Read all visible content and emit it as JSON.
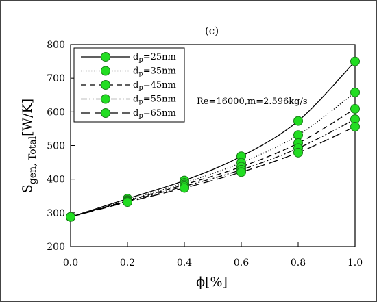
{
  "chart_data": {
    "type": "line",
    "panel_label": "(c)",
    "xlabel": "ϕ[%]",
    "ylabel_main": "S",
    "ylabel_sub": "gen, Total",
    "ylabel_unit": "[W/K]",
    "xlim": [
      0,
      1
    ],
    "ylim": [
      200,
      800
    ],
    "xticks": [
      0.0,
      0.2,
      0.4,
      0.6,
      0.8,
      1.0
    ],
    "xtick_labels": [
      "0.0",
      "0.2",
      "0.4",
      "0.6",
      "0.8",
      "1.0"
    ],
    "yticks": [
      200,
      300,
      400,
      500,
      600,
      700,
      800
    ],
    "ytick_labels": [
      "200",
      "300",
      "400",
      "500",
      "600",
      "700",
      "800"
    ],
    "grid": false,
    "legend_placement": "top-left",
    "annotation": "Re=16000,m=2.596kg/s",
    "marker_color": "#22dd22",
    "marker_edge_color": "#1a7a1a",
    "x": [
      0.0,
      0.2,
      0.4,
      0.6,
      0.8,
      1.0
    ],
    "series": [
      {
        "legend_prefix": "d",
        "legend_sub": "p",
        "legend_value": "=25nm",
        "dash": "solid",
        "values": [
          288,
          342,
          396,
          468,
          573,
          750
        ]
      },
      {
        "legend_prefix": "d",
        "legend_sub": "p",
        "legend_value": "=35nm",
        "dash": "dotted",
        "values": [
          288,
          338,
          389,
          449,
          531,
          658
        ]
      },
      {
        "legend_prefix": "d",
        "legend_sub": "p",
        "legend_value": "=45nm",
        "dash": "dashed",
        "values": [
          288,
          336,
          384,
          437,
          507,
          609
        ]
      },
      {
        "legend_prefix": "d",
        "legend_sub": "p",
        "legend_value": "=55nm",
        "dash": "dashdotdot",
        "values": [
          288,
          334,
          379,
          428,
          492,
          578
        ]
      },
      {
        "legend_prefix": "d",
        "legend_sub": "p",
        "legend_value": "=65nm",
        "dash": "longdash",
        "values": [
          288,
          332,
          374,
          421,
          479,
          556
        ]
      }
    ]
  }
}
